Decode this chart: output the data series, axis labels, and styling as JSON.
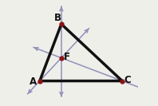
{
  "bg_color": "#efefea",
  "A": [
    0.08,
    0.2
  ],
  "B": [
    0.3,
    0.78
  ],
  "C": [
    0.92,
    0.2
  ],
  "triangle_color": "#111111",
  "triangle_lw": 2.5,
  "altitude_color": "#9090bb",
  "altitude_lw": 1.1,
  "point_color": "#8b1414",
  "point_ms": 3.5,
  "label_fontsize": 8.5,
  "label_color": "#111111",
  "ext_vertex": 0.18,
  "ext_foot": 0.16,
  "arrow_scale": 7
}
